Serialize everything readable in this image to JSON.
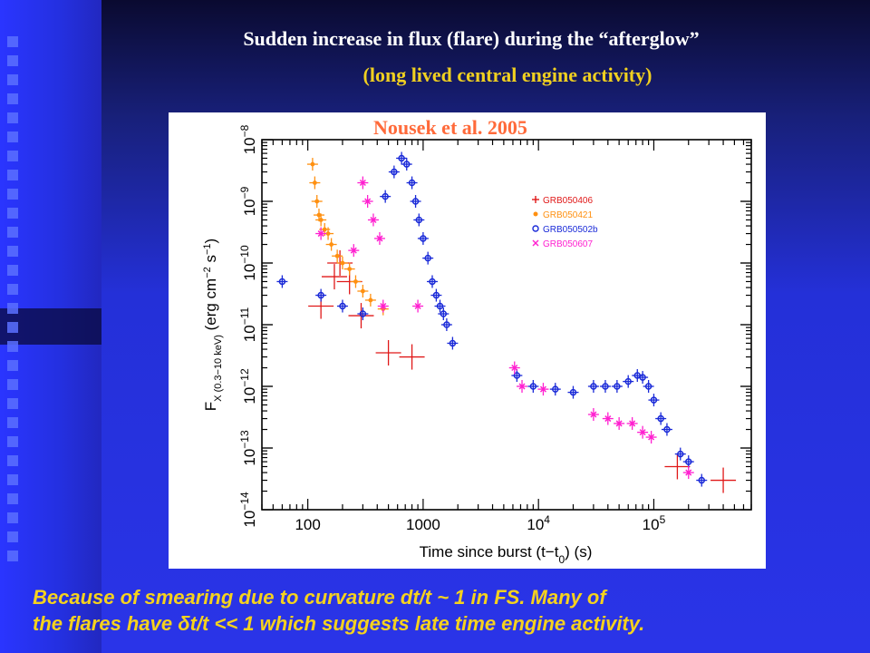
{
  "slide": {
    "title_line1": "Sudden increase in flux (flare) during the “afterglow”",
    "title_line2": "(long lived central engine activity)",
    "citation": "Nousek et al. 2005",
    "caption_line1": "Because of smearing due to curvature dt/t ~ 1 in FS. Many of",
    "caption_line2": "the flares have δt/t << 1 which suggests late time engine activity.",
    "colors": {
      "title": "#ffffff",
      "subtitle": "#f0d020",
      "caption": "#f5d21e",
      "citation": "#ff6a3a"
    }
  },
  "chart_data": {
    "type": "scatter",
    "xlabel": "Time since burst (t−t",
    "xlabel_sub": "0",
    "xlabel_unit": ") (s)",
    "ylabel_main": "F",
    "ylabel_sub": "X (0.3−10 keV)",
    "ylabel_unit": "(erg cm",
    "x_scale": "log",
    "y_scale": "log",
    "xlim": [
      40,
      700000
    ],
    "ylim": [
      1e-14,
      1e-08
    ],
    "x_ticks": [
      {
        "value": 100,
        "label": "100"
      },
      {
        "value": 1000,
        "label": "1000"
      },
      {
        "value": 10000,
        "label": "10",
        "exp": "4"
      },
      {
        "value": 100000,
        "label": "10",
        "exp": "5"
      }
    ],
    "y_ticks": [
      {
        "value": 1e-14,
        "label": "10",
        "exp": "−14"
      },
      {
        "value": 1e-13,
        "label": "10",
        "exp": "−13"
      },
      {
        "value": 1e-12,
        "label": "10",
        "exp": "−12"
      },
      {
        "value": 1e-11,
        "label": "10",
        "exp": "−11"
      },
      {
        "value": 1e-10,
        "label": "10",
        "exp": "−10"
      },
      {
        "value": 1e-09,
        "label": "10",
        "exp": "−9"
      },
      {
        "value": 1e-08,
        "label": "10",
        "exp": "−8"
      }
    ],
    "legend_position": "top-right",
    "series": [
      {
        "name": "GRB050406",
        "color": "#e01818",
        "marker": "plus",
        "points": [
          [
            130,
            2e-11
          ],
          [
            170,
            6e-11
          ],
          [
            190,
            1e-10
          ],
          [
            230,
            5e-11
          ],
          [
            290,
            1.4e-11
          ],
          [
            500,
            3.5e-12
          ],
          [
            800,
            3e-12
          ],
          [
            160000.0,
            5e-14
          ],
          [
            400000.0,
            3e-14
          ]
        ]
      },
      {
        "name": "GRB050421",
        "color": "#ff9010",
        "marker": "star",
        "points": [
          [
            110,
            4e-09
          ],
          [
            115,
            2e-09
          ],
          [
            120,
            1e-09
          ],
          [
            125,
            6e-10
          ],
          [
            130,
            5e-10
          ],
          [
            140,
            3.5e-10
          ],
          [
            150,
            3e-10
          ],
          [
            160,
            2e-10
          ],
          [
            180,
            1.3e-10
          ],
          [
            200,
            1e-10
          ],
          [
            230,
            8e-11
          ],
          [
            260,
            5e-11
          ],
          [
            300,
            3.5e-11
          ],
          [
            350,
            2.5e-11
          ],
          [
            450,
            1.8e-11
          ]
        ]
      },
      {
        "name": "GRB050502b",
        "color": "#1a2ad8",
        "marker": "circle",
        "points": [
          [
            60,
            5e-11
          ],
          [
            130,
            3e-11
          ],
          [
            200,
            2e-11
          ],
          [
            300,
            1.5e-11
          ],
          [
            470,
            1.2e-09
          ],
          [
            560,
            3e-09
          ],
          [
            650,
            5e-09
          ],
          [
            720,
            4e-09
          ],
          [
            800,
            2e-09
          ],
          [
            860,
            1e-09
          ],
          [
            920,
            5e-10
          ],
          [
            1000,
            2.5e-10
          ],
          [
            1100,
            1.2e-10
          ],
          [
            1200,
            5e-11
          ],
          [
            1300,
            3e-11
          ],
          [
            1400,
            2e-11
          ],
          [
            1500,
            1.5e-11
          ],
          [
            1600,
            1e-11
          ],
          [
            1800,
            5e-12
          ],
          [
            6500,
            1.5e-12
          ],
          [
            9000,
            1e-12
          ],
          [
            14000,
            9e-13
          ],
          [
            20000,
            8e-13
          ],
          [
            30000,
            1e-12
          ],
          [
            38000,
            1e-12
          ],
          [
            48000,
            1e-12
          ],
          [
            60000,
            1.2e-12
          ],
          [
            72000,
            1.5e-12
          ],
          [
            80000,
            1.4e-12
          ],
          [
            90000,
            1e-12
          ],
          [
            100000,
            6e-13
          ],
          [
            115000,
            3e-13
          ],
          [
            130000,
            2e-13
          ],
          [
            170000,
            8e-14
          ],
          [
            200000,
            6e-14
          ],
          [
            260000,
            3e-14
          ]
        ]
      },
      {
        "name": "GRB050607",
        "color": "#ff20d0",
        "marker": "cross",
        "points": [
          [
            130,
            3e-10
          ],
          [
            250,
            1.6e-10
          ],
          [
            300,
            2e-09
          ],
          [
            330,
            1e-09
          ],
          [
            370,
            5e-10
          ],
          [
            420,
            2.5e-10
          ],
          [
            450,
            2e-11
          ],
          [
            900,
            2e-11
          ],
          [
            6200,
            2e-12
          ],
          [
            7200,
            1e-12
          ],
          [
            11000,
            9e-13
          ],
          [
            30000,
            3.5e-13
          ],
          [
            40000,
            3e-13
          ],
          [
            50000,
            2.5e-13
          ],
          [
            65000,
            2.5e-13
          ],
          [
            80000,
            1.8e-13
          ],
          [
            95000,
            1.5e-13
          ],
          [
            200000,
            4e-14
          ]
        ]
      }
    ]
  }
}
